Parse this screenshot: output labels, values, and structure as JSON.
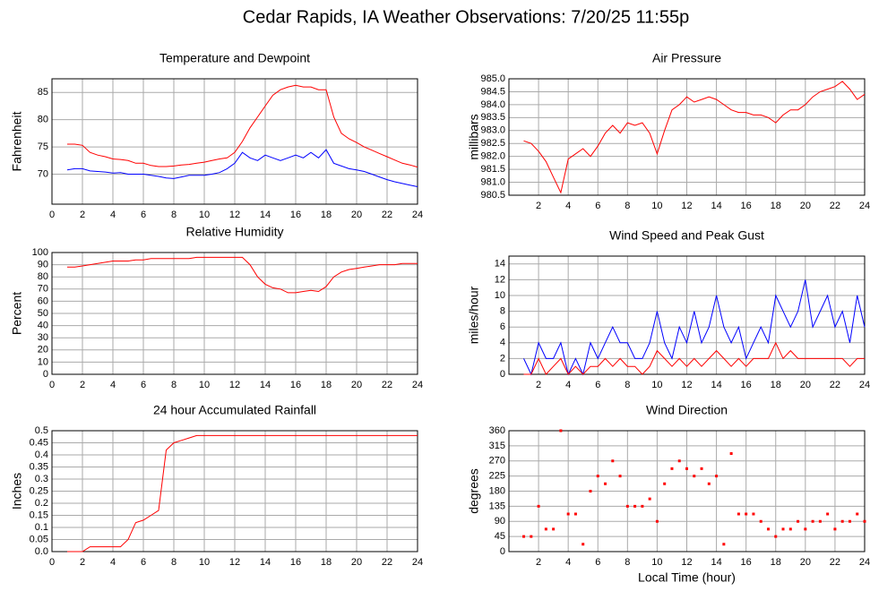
{
  "title": "Cedar Rapids, IA Weather Observations: 7/20/25 11:55p",
  "chart_data": [
    {
      "type": "line",
      "title": "Temperature and Dewpoint",
      "ylabel": "Fahrenheit",
      "grid": true,
      "xlim": [
        0,
        24
      ],
      "xticks": [
        0,
        2,
        4,
        6,
        8,
        10,
        12,
        14,
        16,
        18,
        20,
        22,
        24
      ],
      "ylim": [
        64.5,
        87.5
      ],
      "yticks": [
        70,
        75,
        80,
        85
      ],
      "x": [
        1,
        1.5,
        2,
        2.5,
        3,
        3.5,
        4,
        4.5,
        5,
        5.5,
        6,
        6.5,
        7,
        7.5,
        8,
        8.5,
        9,
        9.5,
        10,
        10.5,
        11,
        11.5,
        12,
        12.5,
        13,
        13.5,
        14,
        14.5,
        15,
        15.5,
        16,
        16.5,
        17,
        17.5,
        18,
        18.5,
        19,
        19.5,
        20,
        20.5,
        21,
        21.5,
        22,
        22.5,
        23,
        23.5,
        24
      ],
      "series": [
        {
          "color": "#ff0000",
          "values": [
            75.5,
            75.5,
            75.3,
            74,
            73.5,
            73.2,
            72.8,
            72.7,
            72.5,
            72,
            72,
            71.6,
            71.4,
            71.4,
            71.5,
            71.7,
            71.8,
            72,
            72.2,
            72.5,
            72.8,
            73,
            74,
            76,
            78.5,
            80.5,
            82.5,
            84.5,
            85.5,
            86,
            86.3,
            86,
            86,
            85.5,
            85.5,
            80.5,
            77.5,
            76.5,
            75.8,
            75,
            74.4,
            73.8,
            73.2,
            72.6,
            72,
            71.7,
            71.3
          ]
        },
        {
          "color": "#0000ff",
          "values": [
            70.8,
            71,
            71,
            70.6,
            70.5,
            70.4,
            70.2,
            70.3,
            70,
            70,
            70,
            69.8,
            69.6,
            69.3,
            69.2,
            69.5,
            69.8,
            69.8,
            69.8,
            70,
            70.3,
            71,
            72,
            74,
            73,
            72.5,
            73.5,
            73,
            72.5,
            73,
            73.5,
            73,
            74,
            73,
            74.5,
            72,
            71.5,
            71,
            70.8,
            70.5,
            70,
            69.5,
            69,
            68.6,
            68.3,
            68,
            67.7
          ]
        }
      ]
    },
    {
      "type": "line",
      "title": "Air Pressure",
      "ylabel": "millibars",
      "grid": true,
      "xlim": [
        0,
        24
      ],
      "xticks": [
        2,
        4,
        6,
        8,
        10,
        12,
        14,
        16,
        18,
        20,
        22,
        24
      ],
      "ylim": [
        980.5,
        985
      ],
      "yticks": [
        980.5,
        {
          "value": 981,
          "label": "981.0"
        },
        981.5,
        {
          "value": 982,
          "label": "982.0"
        },
        982.5,
        {
          "value": 983,
          "label": "983.0"
        },
        983.5,
        {
          "value": 984,
          "label": "984.0"
        },
        984.5,
        {
          "value": 985,
          "label": "985.0"
        }
      ],
      "x": [
        1,
        1.5,
        2,
        2.5,
        3,
        3.5,
        4,
        4.5,
        5,
        5.5,
        6,
        6.5,
        7,
        7.5,
        8,
        8.5,
        9,
        9.5,
        10,
        10.5,
        11,
        11.5,
        12,
        12.5,
        13,
        13.5,
        14,
        14.5,
        15,
        15.5,
        16,
        16.5,
        17,
        17.5,
        18,
        18.5,
        19,
        19.5,
        20,
        20.5,
        21,
        21.5,
        22,
        22.5,
        23,
        23.5,
        24
      ],
      "series": [
        {
          "color": "#ff0000",
          "values": [
            982.6,
            982.5,
            982.2,
            981.8,
            981.2,
            980.6,
            981.9,
            982.1,
            982.3,
            982.0,
            982.4,
            982.9,
            983.2,
            982.9,
            983.3,
            983.2,
            983.3,
            982.9,
            982.1,
            983.0,
            983.8,
            984.0,
            984.3,
            984.1,
            984.2,
            984.3,
            984.2,
            984.0,
            983.8,
            983.7,
            983.7,
            983.6,
            983.6,
            983.5,
            983.3,
            983.6,
            983.8,
            983.8,
            984.0,
            984.3,
            984.5,
            984.6,
            984.7,
            984.9,
            984.6,
            984.2,
            984.4
          ]
        }
      ]
    },
    {
      "type": "line",
      "title": "Relative Humidity",
      "ylabel": "Percent",
      "grid": true,
      "xlim": [
        0,
        24
      ],
      "xticks": [
        0,
        2,
        4,
        6,
        8,
        10,
        12,
        14,
        16,
        18,
        20,
        22,
        24
      ],
      "ylim": [
        0,
        100
      ],
      "yticks": [
        0,
        10,
        20,
        30,
        40,
        50,
        60,
        70,
        80,
        90,
        100
      ],
      "x": [
        1,
        1.5,
        2,
        2.5,
        3,
        3.5,
        4,
        4.5,
        5,
        5.5,
        6,
        6.5,
        7,
        7.5,
        8,
        8.5,
        9,
        9.5,
        10,
        10.5,
        11,
        11.5,
        12,
        12.5,
        13,
        13.5,
        14,
        14.5,
        15,
        15.5,
        16,
        16.5,
        17,
        17.5,
        18,
        18.5,
        19,
        19.5,
        20,
        20.5,
        21,
        21.5,
        22,
        22.5,
        23,
        23.5,
        24
      ],
      "series": [
        {
          "color": "#ff0000",
          "values": [
            88,
            88,
            89,
            90,
            91,
            92,
            93,
            93,
            93,
            94,
            94,
            95,
            95,
            95,
            95,
            95,
            95,
            96,
            96,
            96,
            96,
            96,
            96,
            96,
            90,
            80,
            74,
            71,
            70,
            67,
            67,
            68,
            69,
            68,
            72,
            80,
            84,
            86,
            87,
            88,
            89,
            90,
            90,
            90,
            91,
            91,
            91
          ]
        }
      ]
    },
    {
      "type": "line",
      "title": "Wind Speed and Peak Gust",
      "ylabel": "miles/hour",
      "grid": true,
      "xlim": [
        0,
        24
      ],
      "xticks": [
        2,
        4,
        6,
        8,
        10,
        12,
        14,
        16,
        18,
        20,
        22,
        24
      ],
      "ylim": [
        0,
        15
      ],
      "yticks": [
        0,
        2,
        4,
        6,
        8,
        10,
        12,
        14
      ],
      "x": [
        1,
        1.5,
        2,
        2.5,
        3,
        3.5,
        4,
        4.5,
        5,
        5.5,
        6,
        6.5,
        7,
        7.5,
        8,
        8.5,
        9,
        9.5,
        10,
        10.5,
        11,
        11.5,
        12,
        12.5,
        13,
        13.5,
        14,
        14.5,
        15,
        15.5,
        16,
        16.5,
        17,
        17.5,
        18,
        18.5,
        19,
        19.5,
        20,
        20.5,
        21,
        21.5,
        22,
        22.5,
        23,
        23.5,
        24
      ],
      "series": [
        {
          "color": "#0000ff",
          "values": [
            2,
            0,
            4,
            2,
            2,
            4,
            0,
            2,
            0,
            4,
            2,
            4,
            6,
            4,
            4,
            2,
            2,
            4,
            8,
            4,
            2,
            6,
            4,
            8,
            4,
            6,
            10,
            6,
            4,
            6,
            2,
            4,
            6,
            4,
            10,
            8,
            6,
            8,
            12,
            6,
            8,
            10,
            6,
            8,
            4,
            10,
            6
          ]
        },
        {
          "color": "#ff0000",
          "values": [
            0,
            0,
            2,
            0,
            1,
            2,
            0,
            1,
            0,
            1,
            1,
            2,
            1,
            2,
            1,
            1,
            0,
            1,
            3,
            2,
            1,
            2,
            1,
            2,
            1,
            2,
            3,
            2,
            1,
            2,
            1,
            2,
            2,
            2,
            4,
            2,
            3,
            2,
            2,
            2,
            2,
            2,
            2,
            2,
            1,
            2,
            2
          ]
        }
      ]
    },
    {
      "type": "line",
      "title": "24 hour Accumulated Rainfall",
      "ylabel": "Inches",
      "grid": true,
      "xlim": [
        0,
        24
      ],
      "xticks": [
        0,
        2,
        4,
        6,
        8,
        10,
        12,
        14,
        16,
        18,
        20,
        22,
        24
      ],
      "ylim": [
        0,
        0.5
      ],
      "yticks": [
        {
          "value": 0,
          "label": "0.0"
        },
        0.05,
        0.1,
        0.15,
        0.2,
        0.25,
        0.3,
        0.35,
        0.4,
        0.45,
        0.5
      ],
      "x": [
        1,
        1.5,
        2,
        2.5,
        3,
        3.5,
        4,
        4.5,
        5,
        5.5,
        6,
        6.5,
        7,
        7.5,
        8,
        8.5,
        9,
        9.5,
        10,
        12,
        14,
        16,
        18,
        20,
        22,
        24
      ],
      "series": [
        {
          "color": "#ff0000",
          "values": [
            0,
            0,
            0,
            0.02,
            0.02,
            0.02,
            0.02,
            0.02,
            0.05,
            0.12,
            0.13,
            0.15,
            0.17,
            0.42,
            0.45,
            0.46,
            0.47,
            0.48,
            0.48,
            0.48,
            0.48,
            0.48,
            0.48,
            0.48,
            0.48,
            0.48
          ]
        }
      ]
    },
    {
      "type": "scatter",
      "title": "Wind Direction",
      "ylabel": "degrees",
      "xlabel": "Local Time (hour)",
      "grid": true,
      "xlim": [
        0,
        24
      ],
      "xticks": [
        2,
        4,
        6,
        8,
        10,
        12,
        14,
        16,
        18,
        20,
        22,
        24
      ],
      "ylim": [
        0,
        360
      ],
      "yticks": [
        0,
        45,
        90,
        135,
        180,
        225,
        270,
        315,
        360
      ],
      "x": [
        1,
        1.5,
        2,
        2.5,
        3,
        3.5,
        4,
        4.5,
        5,
        5.5,
        6,
        6.5,
        7,
        7.5,
        8,
        8.5,
        9,
        9.5,
        10,
        10.5,
        11,
        11.5,
        12,
        12.5,
        13,
        13.5,
        14,
        14.5,
        15,
        15.5,
        16,
        16.5,
        17,
        17.5,
        18,
        18.5,
        19,
        19.5,
        20,
        20.5,
        21,
        21.5,
        22,
        22.5,
        23,
        23.5,
        24
      ],
      "series": [
        {
          "color": "#ff0000",
          "values": [
            45,
            45,
            135,
            67,
            67,
            360,
            112,
            112,
            22,
            180,
            225,
            202,
            270,
            225,
            135,
            135,
            135,
            157,
            90,
            202,
            247,
            270,
            247,
            225,
            247,
            202,
            225,
            22,
            292,
            112,
            112,
            112,
            90,
            67,
            45,
            67,
            67,
            90,
            67,
            90,
            90,
            112,
            67,
            90,
            90,
            112,
            90
          ]
        }
      ]
    }
  ]
}
